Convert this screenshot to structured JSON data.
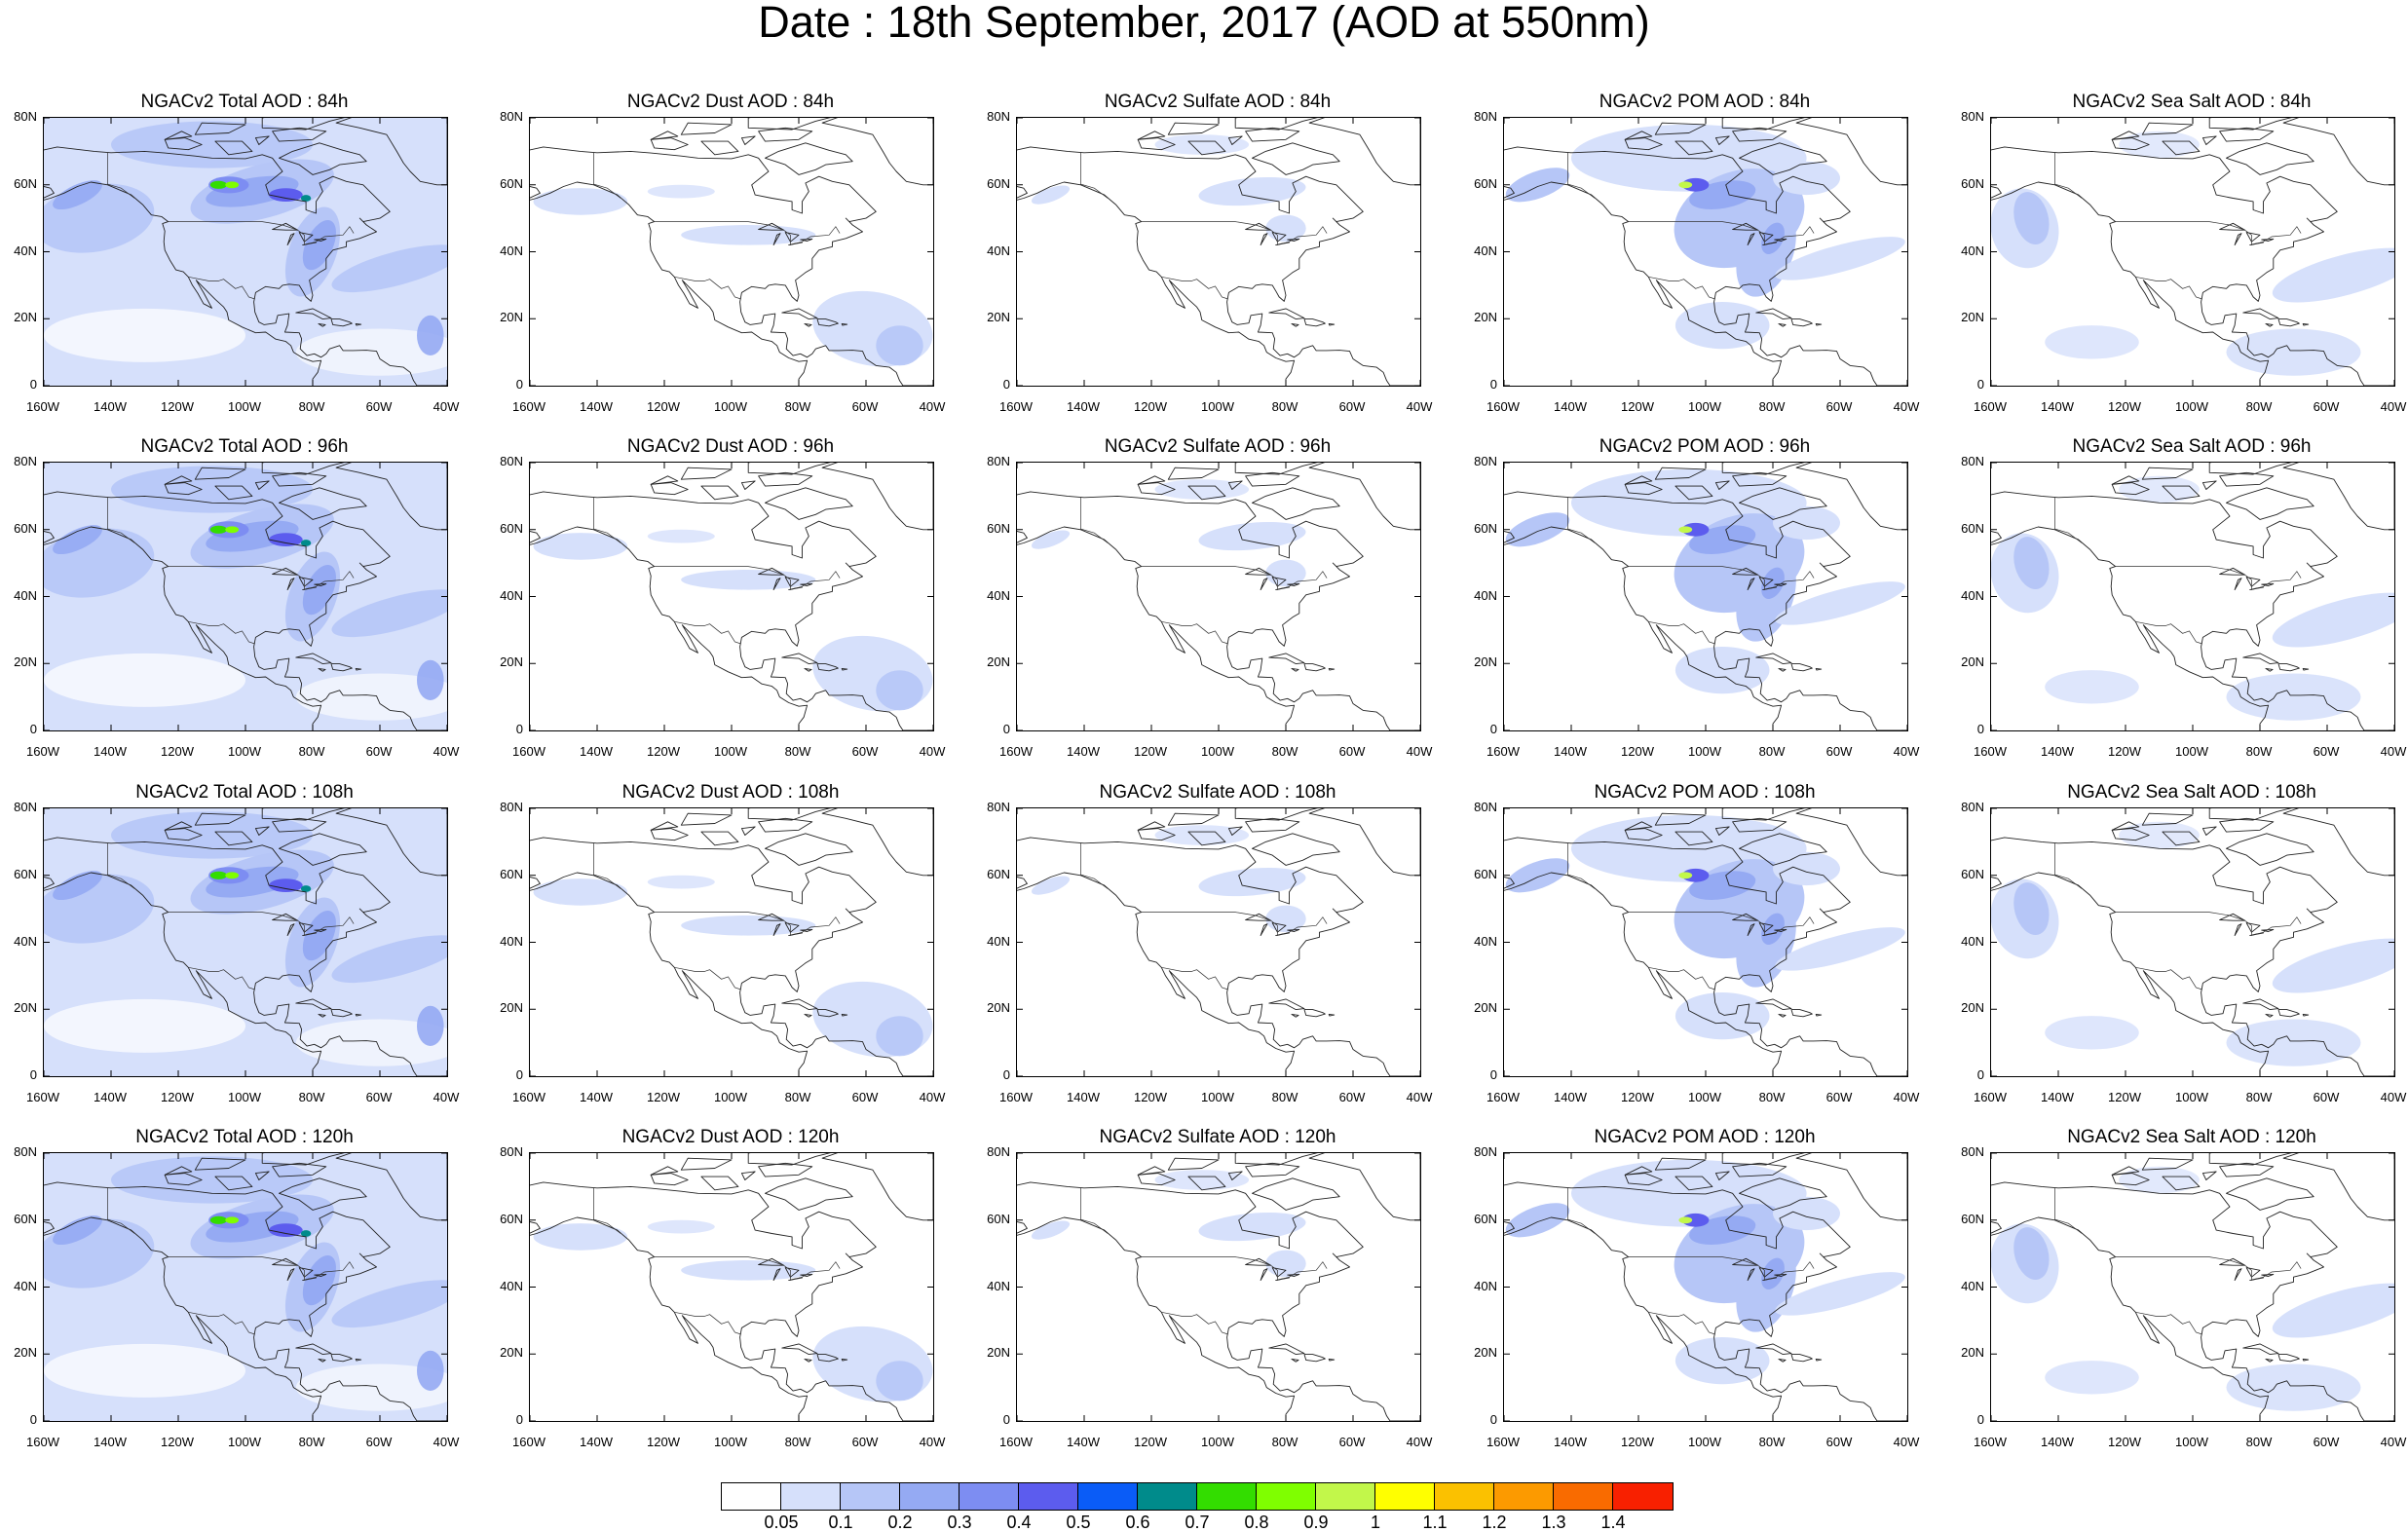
{
  "title": "Date : 18th September, 2017 (AOD at 550nm)",
  "map_ticks": {
    "lat": [
      "80N",
      "60N",
      "40N",
      "20N",
      "0"
    ],
    "lon": [
      "160W",
      "140W",
      "120W",
      "100W",
      "80W",
      "60W",
      "40W"
    ]
  },
  "rows": [
    {
      "panels": [
        {
          "title": "NGACv2 Total AOD : 84h",
          "field": "total"
        },
        {
          "title": "NGACv2 Dust AOD : 84h",
          "field": "dust"
        },
        {
          "title": "NGACv2 Sulfate AOD : 84h",
          "field": "sulfate"
        },
        {
          "title": "NGACv2 POM AOD : 84h",
          "field": "pom"
        },
        {
          "title": "NGACv2 Sea Salt AOD : 84h",
          "field": "seasalt"
        }
      ]
    },
    {
      "panels": [
        {
          "title": "NGACv2 Total AOD : 96h",
          "field": "total"
        },
        {
          "title": "NGACv2 Dust AOD : 96h",
          "field": "dust"
        },
        {
          "title": "NGACv2 Sulfate AOD : 96h",
          "field": "sulfate"
        },
        {
          "title": "NGACv2 POM AOD : 96h",
          "field": "pom"
        },
        {
          "title": "NGACv2 Sea Salt AOD : 96h",
          "field": "seasalt"
        }
      ]
    },
    {
      "panels": [
        {
          "title": "NGACv2 Total AOD : 108h",
          "field": "total"
        },
        {
          "title": "NGACv2 Dust AOD : 108h",
          "field": "dust"
        },
        {
          "title": "NGACv2 Sulfate AOD : 108h",
          "field": "sulfate"
        },
        {
          "title": "NGACv2 POM AOD : 108h",
          "field": "pom"
        },
        {
          "title": "NGACv2 Sea Salt AOD : 108h",
          "field": "seasalt"
        }
      ]
    },
    {
      "panels": [
        {
          "title": "NGACv2 Total AOD : 120h",
          "field": "total"
        },
        {
          "title": "NGACv2 Dust AOD : 120h",
          "field": "dust"
        },
        {
          "title": "NGACv2 Sulfate AOD : 120h",
          "field": "sulfate"
        },
        {
          "title": "NGACv2 POM AOD : 120h",
          "field": "pom"
        },
        {
          "title": "NGACv2 Sea Salt  AOD : 120h",
          "field": "seasalt"
        }
      ]
    }
  ],
  "colorbar": {
    "labels": [
      "0.05",
      "0.1",
      "0.2",
      "0.3",
      "0.4",
      "0.5",
      "0.6",
      "0.7",
      "0.8",
      "0.9",
      "1",
      "1.1",
      "1.2",
      "1.3",
      "1.4"
    ],
    "colors": [
      "#ffffff",
      "#d6e0fb",
      "#b6c6f7",
      "#95aaf3",
      "#7d8df2",
      "#5c5cee",
      "#0a5cf7",
      "#008b8b",
      "#33dd00",
      "#7fff00",
      "#c2f74a",
      "#ffff00",
      "#fbc100",
      "#fc9a00",
      "#f96b00",
      "#f82000"
    ]
  }
}
